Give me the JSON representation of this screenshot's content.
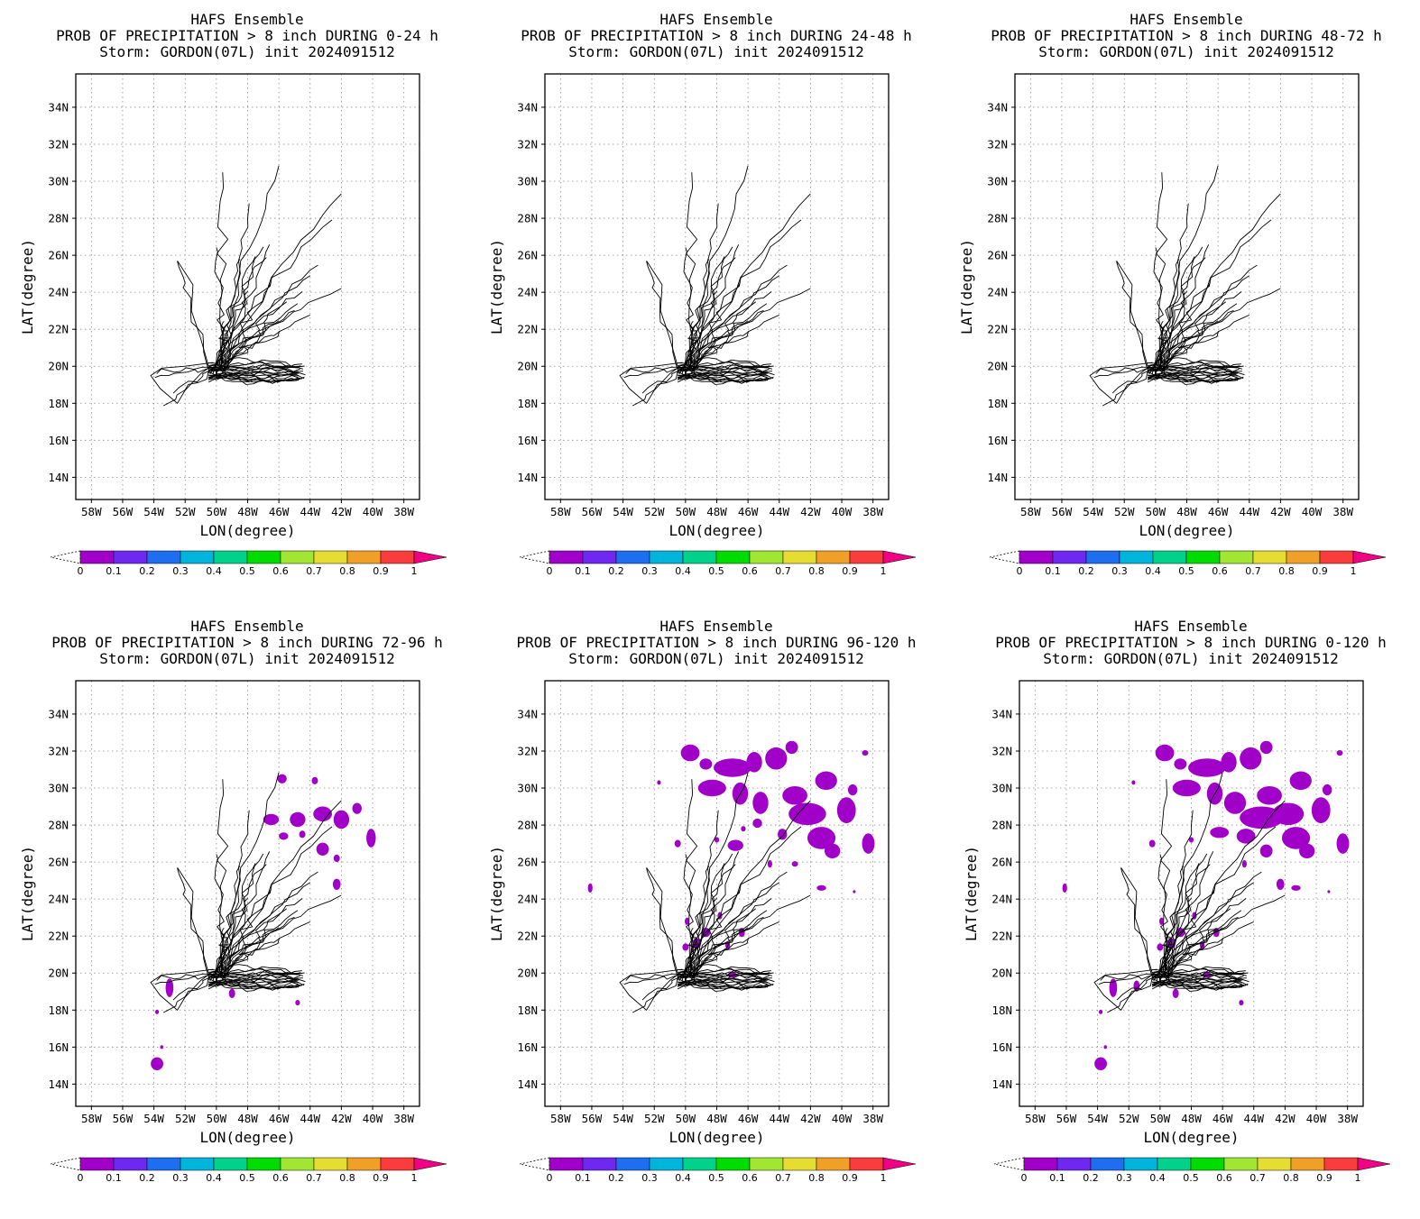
{
  "figure": {
    "colorbar_levels": [
      "0",
      "0.1",
      "0.2",
      "0.3",
      "0.4",
      "0.5",
      "0.6",
      "0.7",
      "0.8",
      "0.9",
      "1"
    ],
    "colorbar_colors": [
      "#a000c8",
      "#6e28f0",
      "#1e6ef0",
      "#00b4dc",
      "#00d28c",
      "#00dc00",
      "#a0e632",
      "#e6dc32",
      "#f0a028",
      "#fa3c3c",
      "#f00082"
    ],
    "track_color": "#000000",
    "prob_color": "#a000c8"
  },
  "chart_data": [
    {
      "type": "heatmap",
      "title_line1": "HAFS Ensemble",
      "title_line2": "PROB OF PRECIPITATION > 8 inch DURING  0-24 h",
      "title_line3": "Storm: GORDON(07L) init 2024091512",
      "xlabel": "LON(degree)",
      "ylabel": "LAT(degree)",
      "xlim": [
        -59,
        -37
      ],
      "ylim": [
        12.8,
        35.8
      ],
      "xticks": [
        "58W",
        "56W",
        "54W",
        "52W",
        "50W",
        "48W",
        "46W",
        "44W",
        "42W",
        "40W",
        "38W"
      ],
      "yticks": [
        "14N",
        "16N",
        "18N",
        "20N",
        "22N",
        "24N",
        "26N",
        "28N",
        "30N",
        "32N",
        "34N"
      ],
      "grid": true,
      "prob_areas": []
    },
    {
      "type": "heatmap",
      "title_line1": "HAFS Ensemble",
      "title_line2": "PROB OF PRECIPITATION > 8 inch DURING 24-48 h",
      "title_line3": "Storm: GORDON(07L) init 2024091512",
      "xlabel": "LON(degree)",
      "ylabel": "LAT(degree)",
      "xlim": [
        -59,
        -37
      ],
      "ylim": [
        12.8,
        35.8
      ],
      "xticks": [
        "58W",
        "56W",
        "54W",
        "52W",
        "50W",
        "48W",
        "46W",
        "44W",
        "42W",
        "40W",
        "38W"
      ],
      "yticks": [
        "14N",
        "16N",
        "18N",
        "20N",
        "22N",
        "24N",
        "26N",
        "28N",
        "30N",
        "32N",
        "34N"
      ],
      "grid": true,
      "prob_areas": []
    },
    {
      "type": "heatmap",
      "title_line1": "HAFS Ensemble",
      "title_line2": "PROB OF PRECIPITATION > 8 inch DURING 48-72 h",
      "title_line3": "Storm: GORDON(07L) init 2024091512",
      "xlabel": "LON(degree)",
      "ylabel": "LAT(degree)",
      "xlim": [
        -59,
        -37
      ],
      "ylim": [
        12.8,
        35.8
      ],
      "xticks": [
        "58W",
        "56W",
        "54W",
        "52W",
        "50W",
        "48W",
        "46W",
        "44W",
        "42W",
        "40W",
        "38W"
      ],
      "yticks": [
        "14N",
        "16N",
        "18N",
        "20N",
        "22N",
        "24N",
        "26N",
        "28N",
        "30N",
        "32N",
        "34N"
      ],
      "grid": true,
      "prob_areas": []
    },
    {
      "type": "heatmap",
      "title_line1": "HAFS Ensemble",
      "title_line2": "PROB OF PRECIPITATION > 8 inch DURING 72-96 h",
      "title_line3": "Storm: GORDON(07L) init 2024091512",
      "xlabel": "LON(degree)",
      "ylabel": "LAT(degree)",
      "xlim": [
        -59,
        -37
      ],
      "ylim": [
        12.8,
        35.8
      ],
      "xticks": [
        "58W",
        "56W",
        "54W",
        "52W",
        "50W",
        "48W",
        "46W",
        "44W",
        "42W",
        "40W",
        "38W"
      ],
      "yticks": [
        "14N",
        "16N",
        "18N",
        "20N",
        "22N",
        "24N",
        "26N",
        "28N",
        "30N",
        "32N",
        "34N"
      ],
      "grid": true,
      "prob_areas": [
        {
          "lon": -45.8,
          "lat": 30.5,
          "rlon": 0.3,
          "rlat": 0.25
        },
        {
          "lon": -43.7,
          "lat": 30.4,
          "rlon": 0.2,
          "rlat": 0.2
        },
        {
          "lon": -46.5,
          "lat": 28.3,
          "rlon": 0.5,
          "rlat": 0.3
        },
        {
          "lon": -44.8,
          "lat": 28.3,
          "rlon": 0.5,
          "rlat": 0.4
        },
        {
          "lon": -43.2,
          "lat": 28.6,
          "rlon": 0.6,
          "rlat": 0.4
        },
        {
          "lon": -42.0,
          "lat": 28.3,
          "rlon": 0.5,
          "rlat": 0.5
        },
        {
          "lon": -41.0,
          "lat": 28.9,
          "rlon": 0.3,
          "rlat": 0.3
        },
        {
          "lon": -44.5,
          "lat": 27.5,
          "rlon": 0.2,
          "rlat": 0.2
        },
        {
          "lon": -45.7,
          "lat": 27.4,
          "rlon": 0.3,
          "rlat": 0.2
        },
        {
          "lon": -43.2,
          "lat": 26.7,
          "rlon": 0.4,
          "rlat": 0.35
        },
        {
          "lon": -42.3,
          "lat": 26.2,
          "rlon": 0.2,
          "rlat": 0.2
        },
        {
          "lon": -40.1,
          "lat": 27.3,
          "rlon": 0.3,
          "rlat": 0.5
        },
        {
          "lon": -42.3,
          "lat": 24.8,
          "rlon": 0.25,
          "rlat": 0.3
        },
        {
          "lon": -53.0,
          "lat": 19.2,
          "rlon": 0.25,
          "rlat": 0.5
        },
        {
          "lon": -49.0,
          "lat": 18.9,
          "rlon": 0.2,
          "rlat": 0.25
        },
        {
          "lon": -44.8,
          "lat": 18.4,
          "rlon": 0.15,
          "rlat": 0.15
        },
        {
          "lon": -53.8,
          "lat": 17.9,
          "rlon": 0.12,
          "rlat": 0.12
        },
        {
          "lon": -53.5,
          "lat": 16.0,
          "rlon": 0.1,
          "rlat": 0.1
        },
        {
          "lon": -53.8,
          "lat": 15.1,
          "rlon": 0.4,
          "rlat": 0.35
        }
      ]
    },
    {
      "type": "heatmap",
      "title_line1": "HAFS Ensemble",
      "title_line2": "PROB OF PRECIPITATION > 8 inch DURING 96-120 h",
      "title_line3": "Storm: GORDON(07L) init 2024091512",
      "xlabel": "LON(degree)",
      "ylabel": "LAT(degree)",
      "xlim": [
        -59,
        -37
      ],
      "ylim": [
        12.8,
        35.8
      ],
      "xticks": [
        "58W",
        "56W",
        "54W",
        "52W",
        "50W",
        "48W",
        "46W",
        "44W",
        "42W",
        "40W",
        "38W"
      ],
      "yticks": [
        "14N",
        "16N",
        "18N",
        "20N",
        "22N",
        "24N",
        "26N",
        "28N",
        "30N",
        "32N",
        "34N"
      ],
      "grid": true,
      "prob_areas": [
        {
          "lon": -49.7,
          "lat": 31.9,
          "rlon": 0.6,
          "rlat": 0.45
        },
        {
          "lon": -48.7,
          "lat": 31.3,
          "rlon": 0.4,
          "rlat": 0.3
        },
        {
          "lon": -47.0,
          "lat": 31.1,
          "rlon": 1.2,
          "rlat": 0.5
        },
        {
          "lon": -45.6,
          "lat": 31.4,
          "rlon": 0.5,
          "rlat": 0.55
        },
        {
          "lon": -44.2,
          "lat": 31.6,
          "rlon": 0.7,
          "rlat": 0.6
        },
        {
          "lon": -43.2,
          "lat": 32.2,
          "rlon": 0.4,
          "rlat": 0.35
        },
        {
          "lon": -38.5,
          "lat": 31.9,
          "rlon": 0.2,
          "rlat": 0.15
        },
        {
          "lon": -48.3,
          "lat": 30.0,
          "rlon": 0.9,
          "rlat": 0.45
        },
        {
          "lon": -46.5,
          "lat": 29.7,
          "rlon": 0.5,
          "rlat": 0.6
        },
        {
          "lon": -45.2,
          "lat": 29.2,
          "rlon": 0.5,
          "rlat": 0.6
        },
        {
          "lon": -43.0,
          "lat": 29.6,
          "rlon": 0.8,
          "rlat": 0.5
        },
        {
          "lon": -41.0,
          "lat": 30.4,
          "rlon": 0.7,
          "rlat": 0.5
        },
        {
          "lon": -42.2,
          "lat": 28.6,
          "rlon": 1.2,
          "rlat": 0.6
        },
        {
          "lon": -39.7,
          "lat": 28.8,
          "rlon": 0.6,
          "rlat": 0.7
        },
        {
          "lon": -39.3,
          "lat": 29.9,
          "rlon": 0.3,
          "rlat": 0.3
        },
        {
          "lon": -45.4,
          "lat": 28.1,
          "rlon": 0.3,
          "rlat": 0.25
        },
        {
          "lon": -43.8,
          "lat": 27.5,
          "rlon": 0.3,
          "rlat": 0.3
        },
        {
          "lon": -46.8,
          "lat": 26.9,
          "rlon": 0.5,
          "rlat": 0.3
        },
        {
          "lon": -41.3,
          "lat": 27.3,
          "rlon": 0.9,
          "rlat": 0.6
        },
        {
          "lon": -38.3,
          "lat": 27.0,
          "rlon": 0.4,
          "rlat": 0.55
        },
        {
          "lon": -40.6,
          "lat": 26.6,
          "rlon": 0.5,
          "rlat": 0.4
        },
        {
          "lon": -50.5,
          "lat": 27.0,
          "rlon": 0.2,
          "rlat": 0.2
        },
        {
          "lon": -48.0,
          "lat": 27.2,
          "rlon": 0.15,
          "rlat": 0.15
        },
        {
          "lon": -46.3,
          "lat": 27.8,
          "rlon": 0.15,
          "rlat": 0.15
        },
        {
          "lon": -44.6,
          "lat": 25.9,
          "rlon": 0.15,
          "rlat": 0.2
        },
        {
          "lon": -43.0,
          "lat": 25.9,
          "rlon": 0.2,
          "rlat": 0.15
        },
        {
          "lon": -41.3,
          "lat": 24.6,
          "rlon": 0.3,
          "rlat": 0.15
        },
        {
          "lon": -39.2,
          "lat": 24.4,
          "rlon": 0.08,
          "rlat": 0.08
        },
        {
          "lon": -51.7,
          "lat": 30.3,
          "rlon": 0.12,
          "rlat": 0.12
        },
        {
          "lon": -56.1,
          "lat": 24.6,
          "rlon": 0.15,
          "rlat": 0.25
        },
        {
          "lon": -47.8,
          "lat": 23.1,
          "rlon": 0.15,
          "rlat": 0.2
        },
        {
          "lon": -49.9,
          "lat": 22.8,
          "rlon": 0.15,
          "rlat": 0.2
        },
        {
          "lon": -48.7,
          "lat": 22.2,
          "rlon": 0.3,
          "rlat": 0.25
        },
        {
          "lon": -49.3,
          "lat": 21.6,
          "rlon": 0.25,
          "rlat": 0.3
        },
        {
          "lon": -50.0,
          "lat": 21.4,
          "rlon": 0.2,
          "rlat": 0.2
        },
        {
          "lon": -47.3,
          "lat": 21.5,
          "rlon": 0.15,
          "rlat": 0.2
        },
        {
          "lon": -46.4,
          "lat": 22.2,
          "rlon": 0.2,
          "rlat": 0.25
        },
        {
          "lon": -47.0,
          "lat": 19.9,
          "rlon": 0.3,
          "rlat": 0.15
        }
      ]
    },
    {
      "type": "heatmap",
      "title_line1": "HAFS Ensemble",
      "title_line2": "PROB OF PRECIPITATION > 8 inch DURING 0-120 h",
      "title_line3": "Storm: GORDON(07L) init 2024091512",
      "xlabel": "LON(degree)",
      "ylabel": "LAT(degree)",
      "xlim": [
        -59,
        -37
      ],
      "ylim": [
        12.8,
        35.8
      ],
      "xticks": [
        "58W",
        "56W",
        "54W",
        "52W",
        "50W",
        "48W",
        "46W",
        "44W",
        "42W",
        "40W",
        "38W"
      ],
      "yticks": [
        "14N",
        "16N",
        "18N",
        "20N",
        "22N",
        "24N",
        "26N",
        "28N",
        "30N",
        "32N",
        "34N"
      ],
      "grid": true,
      "prob_areas": [
        {
          "lon": -49.7,
          "lat": 31.9,
          "rlon": 0.6,
          "rlat": 0.45
        },
        {
          "lon": -48.7,
          "lat": 31.3,
          "rlon": 0.4,
          "rlat": 0.3
        },
        {
          "lon": -47.0,
          "lat": 31.1,
          "rlon": 1.2,
          "rlat": 0.5
        },
        {
          "lon": -45.6,
          "lat": 31.4,
          "rlon": 0.5,
          "rlat": 0.55
        },
        {
          "lon": -44.2,
          "lat": 31.6,
          "rlon": 0.7,
          "rlat": 0.6
        },
        {
          "lon": -43.2,
          "lat": 32.2,
          "rlon": 0.4,
          "rlat": 0.35
        },
        {
          "lon": -38.5,
          "lat": 31.9,
          "rlon": 0.2,
          "rlat": 0.15
        },
        {
          "lon": -48.3,
          "lat": 30.0,
          "rlon": 0.9,
          "rlat": 0.45
        },
        {
          "lon": -46.5,
          "lat": 29.7,
          "rlon": 0.5,
          "rlat": 0.6
        },
        {
          "lon": -45.2,
          "lat": 29.2,
          "rlon": 0.7,
          "rlat": 0.6
        },
        {
          "lon": -43.0,
          "lat": 29.6,
          "rlon": 0.8,
          "rlat": 0.5
        },
        {
          "lon": -41.0,
          "lat": 30.4,
          "rlon": 0.7,
          "rlat": 0.5
        },
        {
          "lon": -43.5,
          "lat": 28.4,
          "rlon": 1.4,
          "rlat": 0.6
        },
        {
          "lon": -41.8,
          "lat": 28.6,
          "rlon": 1.0,
          "rlat": 0.6
        },
        {
          "lon": -39.7,
          "lat": 28.8,
          "rlon": 0.6,
          "rlat": 0.7
        },
        {
          "lon": -39.3,
          "lat": 29.9,
          "rlon": 0.3,
          "rlat": 0.3
        },
        {
          "lon": -46.2,
          "lat": 27.6,
          "rlon": 0.6,
          "rlat": 0.3
        },
        {
          "lon": -44.5,
          "lat": 27.4,
          "rlon": 0.6,
          "rlat": 0.4
        },
        {
          "lon": -41.3,
          "lat": 27.3,
          "rlon": 0.9,
          "rlat": 0.6
        },
        {
          "lon": -38.3,
          "lat": 27.0,
          "rlon": 0.4,
          "rlat": 0.55
        },
        {
          "lon": -40.6,
          "lat": 26.6,
          "rlon": 0.5,
          "rlat": 0.4
        },
        {
          "lon": -43.2,
          "lat": 26.6,
          "rlon": 0.4,
          "rlat": 0.35
        },
        {
          "lon": -50.5,
          "lat": 27.0,
          "rlon": 0.2,
          "rlat": 0.2
        },
        {
          "lon": -48.0,
          "lat": 27.2,
          "rlon": 0.15,
          "rlat": 0.15
        },
        {
          "lon": -41.5,
          "lat": 28.2,
          "rlon": 0.3,
          "rlat": 0.15
        },
        {
          "lon": -44.6,
          "lat": 25.9,
          "rlon": 0.15,
          "rlat": 0.2
        },
        {
          "lon": -41.3,
          "lat": 24.6,
          "rlon": 0.3,
          "rlat": 0.15
        },
        {
          "lon": -39.2,
          "lat": 24.4,
          "rlon": 0.08,
          "rlat": 0.08
        },
        {
          "lon": -51.7,
          "lat": 30.3,
          "rlon": 0.12,
          "rlat": 0.12
        },
        {
          "lon": -42.3,
          "lat": 24.8,
          "rlon": 0.25,
          "rlat": 0.3
        },
        {
          "lon": -56.1,
          "lat": 24.6,
          "rlon": 0.15,
          "rlat": 0.25
        },
        {
          "lon": -47.8,
          "lat": 23.1,
          "rlon": 0.15,
          "rlat": 0.2
        },
        {
          "lon": -49.9,
          "lat": 22.8,
          "rlon": 0.15,
          "rlat": 0.2
        },
        {
          "lon": -48.7,
          "lat": 22.2,
          "rlon": 0.3,
          "rlat": 0.25
        },
        {
          "lon": -49.3,
          "lat": 21.6,
          "rlon": 0.25,
          "rlat": 0.3
        },
        {
          "lon": -50.0,
          "lat": 21.4,
          "rlon": 0.2,
          "rlat": 0.2
        },
        {
          "lon": -47.3,
          "lat": 21.5,
          "rlon": 0.15,
          "rlat": 0.2
        },
        {
          "lon": -46.4,
          "lat": 22.2,
          "rlon": 0.2,
          "rlat": 0.25
        },
        {
          "lon": -47.0,
          "lat": 19.9,
          "rlon": 0.3,
          "rlat": 0.15
        },
        {
          "lon": -53.0,
          "lat": 19.2,
          "rlon": 0.25,
          "rlat": 0.5
        },
        {
          "lon": -51.5,
          "lat": 19.3,
          "rlon": 0.2,
          "rlat": 0.3
        },
        {
          "lon": -49.0,
          "lat": 18.9,
          "rlon": 0.2,
          "rlat": 0.25
        },
        {
          "lon": -44.8,
          "lat": 18.4,
          "rlon": 0.15,
          "rlat": 0.15
        },
        {
          "lon": -53.8,
          "lat": 17.9,
          "rlon": 0.12,
          "rlat": 0.12
        },
        {
          "lon": -53.5,
          "lat": 16.0,
          "rlon": 0.1,
          "rlat": 0.1
        },
        {
          "lon": -53.8,
          "lat": 15.1,
          "rlon": 0.4,
          "rlat": 0.35
        }
      ]
    }
  ]
}
